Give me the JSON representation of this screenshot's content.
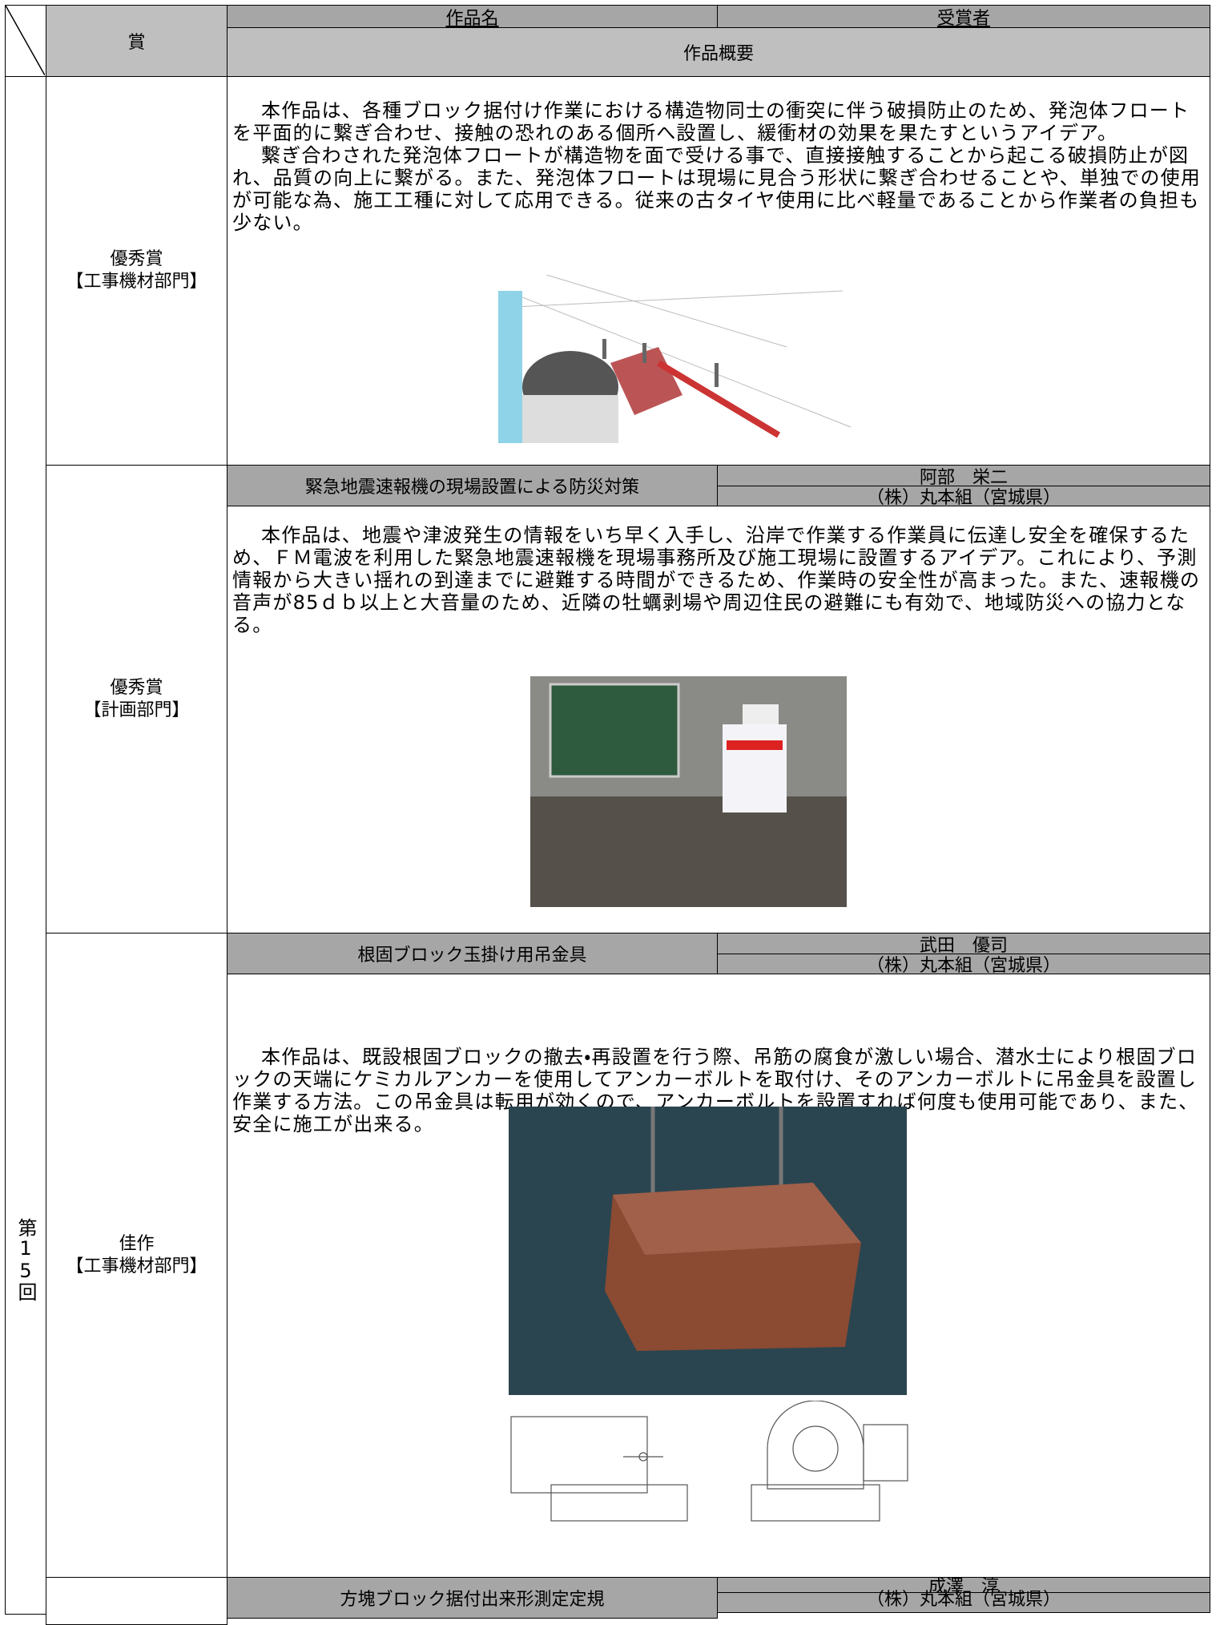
{
  "header": {
    "award": "賞",
    "work_title": "作品名",
    "recipient": "受賞者",
    "summary": "作品概要"
  },
  "session": "第15回",
  "entries": [
    {
      "award": "優秀賞",
      "department": "【工事機材部門】",
      "description": [
        "本作品は、各種ブロック据付け作業における構造物同士の衝突に伴う破損防止のため、発泡体フロートを平面的に繋ぎ合わせ、接触の恐れのある個所へ設置し、緩衝材の効果を果たすというアイデア。",
        "繋ぎ合わされた発泡体フロートが構造物を面で受ける事で、直接接触することから起こる破損防止が図れ、品質の向上に繋がる。また、発泡体フロートは現場に見合う形状に繋ぎ合わせることや、単独での使用が可能な為、施工工種に対して応用できる。従来の古タイヤ使用に比べ軽量であることから作業者の負担も少ない。"
      ]
    },
    {
      "title": "緊急地震速報機の現場設置による防災対策",
      "recipient": "阿部　栄二",
      "company": "（株）丸本組（宮城県）",
      "award": "優秀賞",
      "department": "【計画部門】",
      "description": [
        "本作品は、地震や津波発生の情報をいち早く入手し、沿岸で作業する作業員に伝達し安全を確保するため、ＦＭ電波を利用した緊急地震速報機を現場事務所及び施工現場に設置するアイデア。これにより、予測情報から大きい揺れの到達までに避難する時間ができるため、作業時の安全性が高まった。また、速報機の音声が85ｄｂ以上と大音量のため、近隣の牡蠣剥場や周辺住民の避難にも有効で、地域防災への協力となる。"
      ]
    },
    {
      "title": "根固ブロック玉掛け用吊金具",
      "recipient": "武田　優司",
      "company": "（株）丸本組（宮城県）",
      "award": "佳作",
      "department": "【工事機材部門】",
      "description": [
        "本作品は、既設根固ブロックの撤去・再設置を行う際、吊筋の腐食が激しい場合、潜水士により根固ブロックの天端にケミカルアンカーを使用してアンカーボルトを取付け、そのアンカーボルトに吊金具を設置し作業する方法。この吊金具は転用が効くので、アンカーボルトを設置すれば何度も使用可能であり、また、安全に施工が出来る。"
      ]
    },
    {
      "title": "方塊ブロック据付出来形測定定規",
      "recipient": "成澤　淳",
      "company": "（株）丸本組（宮城県）"
    }
  ]
}
